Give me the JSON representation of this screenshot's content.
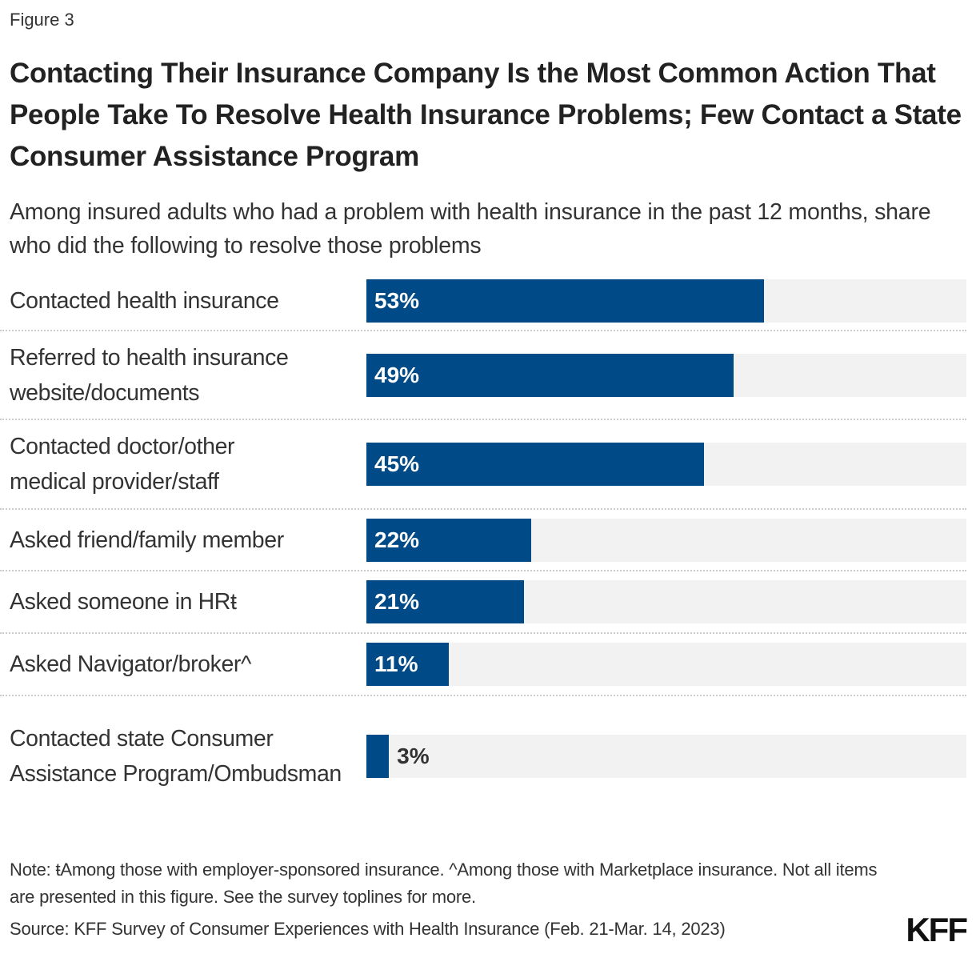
{
  "figure_label": "Figure 3",
  "chart_data": {
    "type": "bar",
    "orientation": "horizontal",
    "title": "Contacting Their Insurance Company Is the Most Common Action That People Take To Resolve Health Insurance Problems; Few Contact a State Consumer Assistance Program",
    "subtitle": "Among insured adults who had a problem with health insurance in the past 12 months, share who did the following to resolve those problems",
    "categories": [
      "Contacted health insurance",
      "Referred to health insurance website/documents",
      "Contacted doctor/other medical provider/staff",
      "Asked friend/family member",
      "Asked someone in HRŧ",
      "Asked Navigator/broker^",
      "Contacted state Consumer Assistance Program/Ombudsman"
    ],
    "values": [
      53,
      49,
      45,
      22,
      21,
      11,
      3
    ],
    "value_labels": [
      "53%",
      "49%",
      "45%",
      "22%",
      "21%",
      "11%",
      "3%"
    ],
    "xlim": [
      0,
      80
    ],
    "grid": false,
    "colors": {
      "bar": "#004a87",
      "track": "#f2f2f2"
    }
  },
  "note": "Note: ŧAmong those with employer-sponsored insurance. ^Among those with Marketplace insurance. Not all items are presented in this figure. See the survey toplines for more.",
  "source": "Source: KFF Survey of Consumer Experiences with Health Insurance (Feb. 21-Mar. 14, 2023)",
  "logo": "KFF"
}
